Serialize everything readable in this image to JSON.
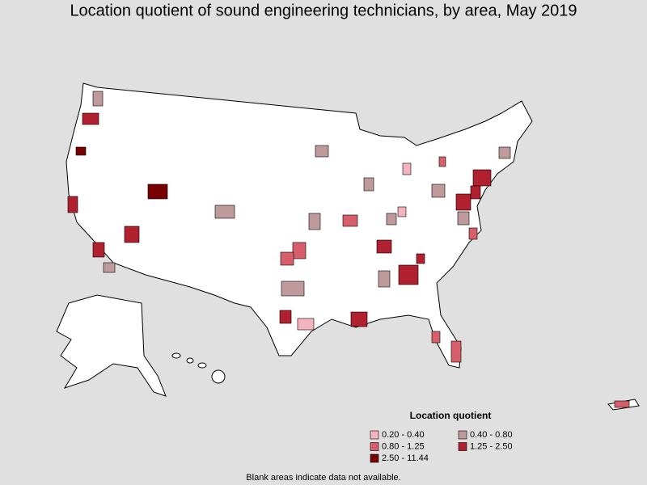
{
  "title": "Location quotient of sound engineering technicians, by area, May 2019",
  "legend": {
    "title": "Location quotient",
    "items": [
      {
        "label": "0.20 - 0.40",
        "color": "#f5b3c0"
      },
      {
        "label": "0.40 - 0.80",
        "color": "#bf9a9c"
      },
      {
        "label": "0.80 - 1.25",
        "color": "#d65f6b"
      },
      {
        "label": "1.25 - 2.50",
        "color": "#b0202f"
      },
      {
        "label": "2.50 - 11.44",
        "color": "#780000"
      }
    ]
  },
  "note": "Blank areas indicate data not available."
}
